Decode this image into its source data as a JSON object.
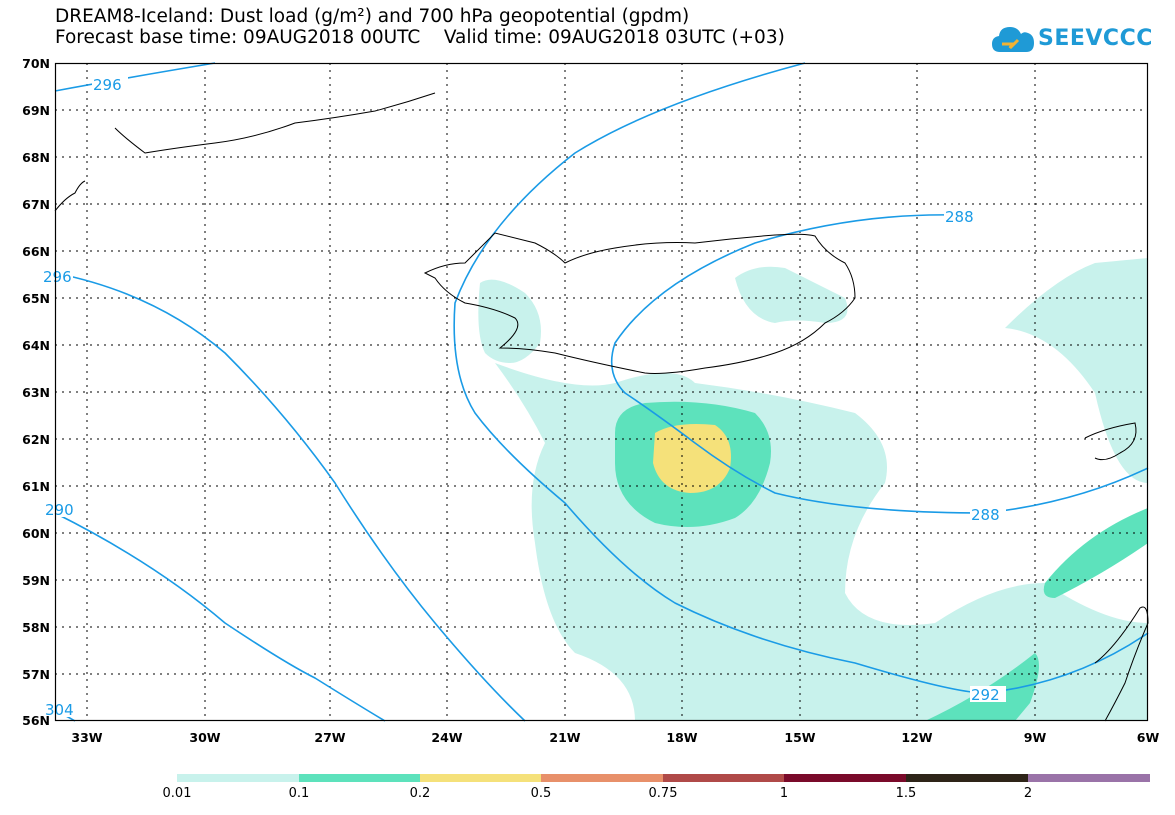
{
  "title": {
    "line1": "DREAM8-Iceland: Dust load (g/m²) and 700 hPa geopotential (gpdm)",
    "line2": "Forecast base time: 09AUG2018 00UTC    Valid time: 09AUG2018 03UTC (+03)"
  },
  "logo": {
    "text": "SEEVCCC",
    "icon": "cloud-logo-icon",
    "color": "#1f9ad6"
  },
  "axes": {
    "lat_labels": [
      "70N",
      "69N",
      "68N",
      "67N",
      "66N",
      "65N",
      "64N",
      "63N",
      "62N",
      "61N",
      "60N",
      "59N",
      "58N",
      "57N",
      "56N"
    ],
    "lon_labels": [
      "33W",
      "30W",
      "27W",
      "24W",
      "21W",
      "18W",
      "15W",
      "12W",
      "9W",
      "6W"
    ]
  },
  "contours": {
    "labels": [
      "296",
      "296",
      "288",
      "288",
      "290",
      "292",
      "304"
    ],
    "color": "#1a9be6"
  },
  "colorbar": {
    "labels": [
      "0.01",
      "0.1",
      "0.2",
      "0.5",
      "0.75",
      "1",
      "1.5",
      "2"
    ],
    "colors": [
      "#c8f2ec",
      "#5de2bc",
      "#f5e17a",
      "#e8906a",
      "#b04a48",
      "#7a0a2a",
      "#2e2418",
      "#9a73a8"
    ]
  },
  "colors": {
    "coast": "#000000",
    "grid": "#000000",
    "contour": "#1a9be6"
  }
}
